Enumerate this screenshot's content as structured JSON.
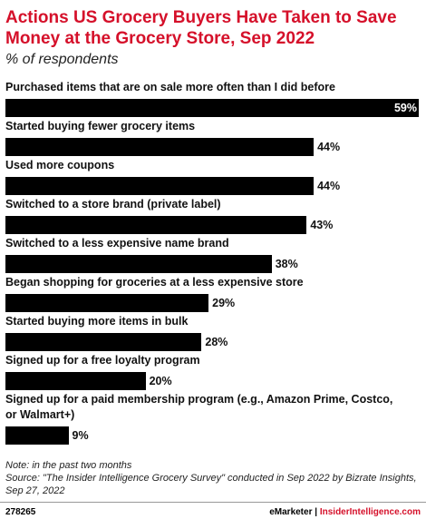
{
  "chart_data": {
    "type": "bar",
    "orientation": "horizontal",
    "title": "Actions US Grocery Buyers Have Taken to Save Money at the Grocery Store, Sep 2022",
    "subtitle": "% of respondents",
    "categories": [
      "Purchased items that are on sale more often than I did before",
      "Started buying fewer grocery items",
      "Used more coupons",
      "Switched to a store brand (private label)",
      "Switched to a less expensive name brand",
      "Began shopping for groceries at a less expensive store",
      "Started buying more items in bulk",
      "Signed up for a free loyalty program",
      "Signed up for a paid membership program (e.g., Amazon Prime, Costco, or Walmart+)"
    ],
    "values": [
      59,
      44,
      44,
      43,
      38,
      29,
      28,
      20,
      9
    ],
    "value_labels": [
      "59%",
      "44%",
      "44%",
      "43%",
      "38%",
      "29%",
      "28%",
      "20%",
      "9%"
    ],
    "color": "#000000",
    "note": "Note: in the past two months",
    "source": "Source: \"The Insider Intelligence Grocery Survey\" conducted in Sep 2022 by Bizrate Insights, Sep 27, 2022",
    "chart_id": "278265",
    "brand": "eMarketer",
    "brand_site": "InsiderIntelligence.com"
  }
}
